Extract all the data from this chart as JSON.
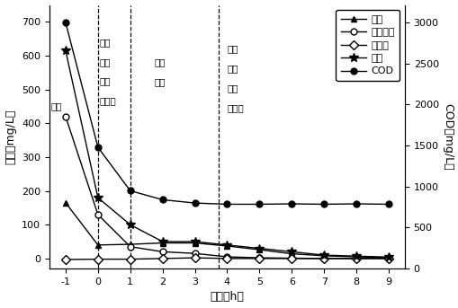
{
  "time": [
    -1,
    0,
    1,
    2,
    3,
    4,
    5,
    6,
    7,
    8,
    9
  ],
  "ammonia": [
    165,
    40,
    42,
    46,
    46,
    37,
    26,
    14,
    8,
    5,
    3
  ],
  "nitrite": [
    420,
    130,
    35,
    20,
    15,
    5,
    2,
    1,
    0,
    0,
    0
  ],
  "nitrate": [
    -3,
    -2,
    -2,
    0,
    2,
    0,
    0,
    0,
    0,
    0,
    0
  ],
  "total_n": [
    615,
    180,
    100,
    50,
    50,
    40,
    30,
    20,
    10,
    7,
    4
  ],
  "COD": [
    3000,
    1480,
    950,
    840,
    800,
    785,
    785,
    790,
    785,
    790,
    785
  ],
  "ylabel_left": "浓度（mg/L）",
  "ylabel_right": "COD（mg/L）",
  "xlabel": "时间（h）",
  "legend_ammonia": "氨氮",
  "legend_nitrite": "亚硝态氮",
  "legend_nitrate": "硝态氮",
  "legend_totaln": "总氮",
  "legend_COD": "COD",
  "label_jinshui": "进水",
  "phase1_lines": [
    "缺氧",
    "搅拌",
    "前置",
    "反硝化"
  ],
  "phase2_lines": [
    "曝气",
    "硝化"
  ],
  "phase3_lines": [
    "缺氧",
    "搅拌",
    "内源",
    "反硝化"
  ],
  "ylim_left": [
    -30,
    750
  ],
  "ylim_right": [
    0,
    3214
  ],
  "xlim": [
    -1.5,
    9.5
  ],
  "xticks": [
    -1,
    0,
    1,
    2,
    3,
    4,
    5,
    6,
    7,
    8,
    9
  ],
  "yticks_left": [
    0,
    100,
    200,
    300,
    400,
    500,
    600,
    700
  ],
  "yticks_right": [
    0,
    500,
    1000,
    1500,
    2000,
    2500,
    3000
  ],
  "vlines": [
    0,
    1,
    3.75
  ]
}
